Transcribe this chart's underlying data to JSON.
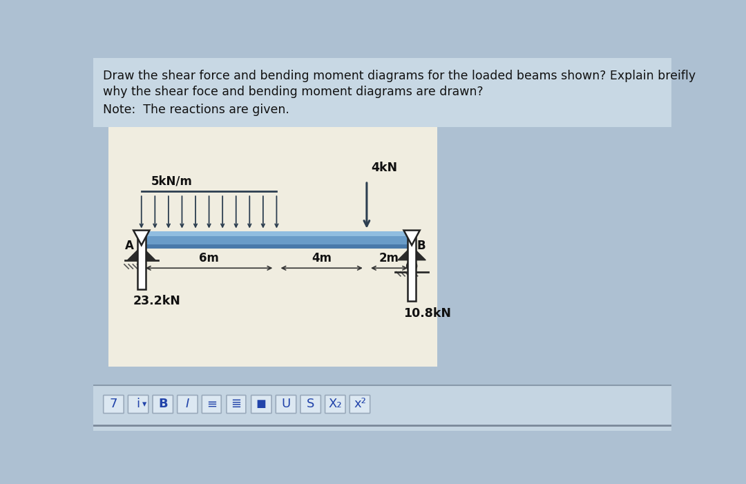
{
  "bg_outer": "#adc0d2",
  "bg_inner": "#f0ede0",
  "bg_toolbar": "#b8ccd8",
  "title_line1": "Draw the shear force and bending moment diagrams for the loaded beams shown? Explain breifly",
  "title_line2": "why the shear foce and bending moment diagrams are drawn?",
  "note_text": "Note:  The reactions are given.",
  "beam_color_dark": "#4a7aaa",
  "beam_color_mid": "#6a9cc8",
  "beam_color_light": "#90bde0",
  "dist_load_label": "5kN/m",
  "point_load_label": "4kN",
  "reaction_A_label": "23.2kN",
  "reaction_B_label": "10.8kN",
  "dim_6m": "6m",
  "dim_4m": "4m",
  "dim_2m": "2m",
  "label_A": "A",
  "label_B": "B",
  "arrow_color": "#2c3e50",
  "dim_color": "#333333",
  "support_color": "#555555",
  "toolbar_btn_labels": [
    "7",
    "i",
    "B",
    "I",
    "≡",
    "≣",
    "◼",
    "U",
    "S",
    "X₂",
    "x²"
  ],
  "toolbar_bg": "#c5d5e2",
  "toolbar_btn_bg": "#dce8f2",
  "toolbar_btn_edge": "#9aaabb",
  "toolbar_text_color": "#2244aa"
}
